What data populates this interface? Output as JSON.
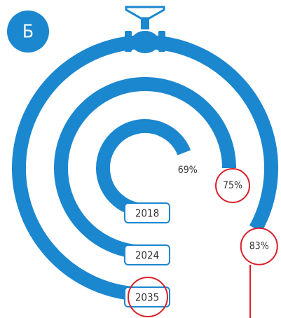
{
  "chart_data": {
    "type": "radial",
    "title": "Б",
    "categories": [
      "2018",
      "2024",
      "2035"
    ],
    "values": [
      69,
      75,
      83
    ],
    "value_labels": [
      "69%",
      "75%",
      "83%"
    ],
    "color": "#1b87cf",
    "ylim": [
      0,
      100
    ]
  }
}
